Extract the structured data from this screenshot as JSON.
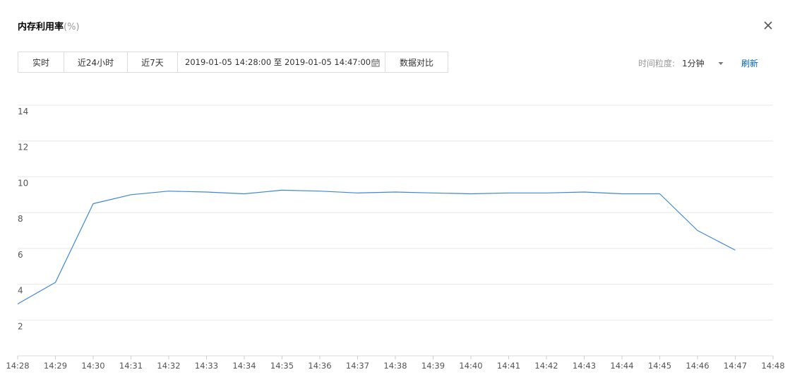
{
  "header": {
    "title": "内存利用率",
    "unit": "(%)",
    "close_icon": "close-icon"
  },
  "toolbar": {
    "segments": [
      "实时",
      "近24小时",
      "近7天"
    ],
    "range": "2019-01-05 14:28:00 至 2019-01-05 14:47:00",
    "calendar_icon": "calendar-icon",
    "compare_label": "数据对比"
  },
  "granularity": {
    "label": "时间粒度:",
    "value": "1分钟",
    "caret_icon": "caret-down-icon"
  },
  "refresh_label": "刷新",
  "colors": {
    "line": "#3f86d6",
    "grid": "#e8e8e8",
    "link": "#0066cc"
  },
  "chart_data": {
    "type": "line",
    "title": "",
    "xlabel": "",
    "ylabel": "",
    "yticks": [
      2,
      4,
      6,
      8,
      10,
      12,
      14
    ],
    "ylim": [
      0,
      14
    ],
    "grid": true,
    "x": [
      "14:28",
      "14:29",
      "14:30",
      "14:31",
      "14:32",
      "14:33",
      "14:34",
      "14:35",
      "14:36",
      "14:37",
      "14:38",
      "14:39",
      "14:40",
      "14:41",
      "14:42",
      "14:43",
      "14:44",
      "14:45",
      "14:46",
      "14:47",
      "14:48"
    ],
    "series": [
      {
        "values": [
          2.9,
          4.1,
          8.5,
          9.0,
          9.2,
          9.15,
          9.05,
          9.25,
          9.2,
          9.1,
          9.15,
          9.1,
          9.05,
          9.1,
          9.1,
          9.15,
          9.05,
          9.05,
          7.0,
          5.9,
          null
        ]
      }
    ]
  }
}
